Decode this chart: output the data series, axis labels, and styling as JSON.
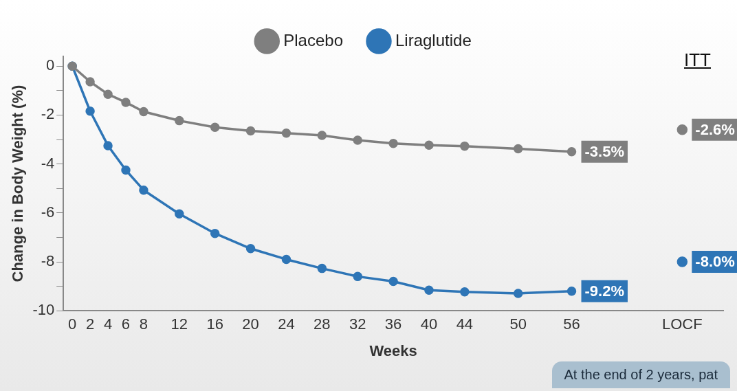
{
  "chart_data": {
    "type": "line",
    "xlabel": "Weeks",
    "ylabel": "Change in Body Weight (%)",
    "x": [
      0,
      2,
      4,
      6,
      8,
      12,
      16,
      20,
      24,
      28,
      32,
      36,
      40,
      44,
      50,
      56
    ],
    "series": [
      {
        "name": "Placebo",
        "color": "#7f7f7f",
        "values": [
          0,
          -0.64,
          -1.15,
          -1.48,
          -1.86,
          -2.23,
          -2.5,
          -2.65,
          -2.74,
          -2.83,
          -3.03,
          -3.16,
          -3.23,
          -3.27,
          -3.38,
          -3.5
        ],
        "value_labels": [
          null,
          null,
          null,
          null,
          null,
          null,
          null,
          null,
          null,
          null,
          null,
          null,
          null,
          null,
          null,
          "-3.5%"
        ]
      },
      {
        "name": "Liraglutide",
        "color": "#2e75b6",
        "values": [
          0,
          -1.84,
          -3.25,
          -4.25,
          -5.07,
          -6.04,
          -6.84,
          -7.46,
          -7.9,
          -8.27,
          -8.6,
          -8.8,
          -9.16,
          -9.23,
          -9.29,
          -9.2
        ],
        "value_labels": [
          null,
          null,
          null,
          null,
          null,
          null,
          null,
          null,
          null,
          null,
          null,
          null,
          null,
          null,
          null,
          "-9.2%"
        ]
      },
      {
        "type": "scatter",
        "color": "#7f7f7f",
        "x": [
          68.4
        ],
        "values": [
          -2.6
        ],
        "value_labels": [
          "-2.6%"
        ]
      },
      {
        "type": "scatter",
        "color": "#2e75b6",
        "x": [
          68.4
        ],
        "values": [
          -8.0
        ],
        "value_labels": [
          "-8.0%"
        ]
      }
    ],
    "xlim": [
      -1,
      73
    ],
    "xticks": [
      0,
      2,
      4,
      6,
      8,
      12,
      16,
      20,
      24,
      28,
      32,
      36,
      40,
      44,
      50,
      56,
      {
        "value": 68.4,
        "label": "LOCF"
      }
    ],
    "ylim": [
      -10,
      0.4
    ],
    "yticks": [
      -10,
      {
        "value": -9,
        "label": null
      },
      -8,
      {
        "value": -7,
        "label": null
      },
      -6,
      {
        "value": -5,
        "label": null
      },
      -4,
      {
        "value": -3,
        "label": null
      },
      -2,
      {
        "value": -1,
        "label": null
      },
      0
    ],
    "marker": "circle",
    "line_style": "solid",
    "grid": false,
    "legend": "top",
    "annotations": [
      "ITT",
      "At the end of 2 years, pat"
    ]
  }
}
